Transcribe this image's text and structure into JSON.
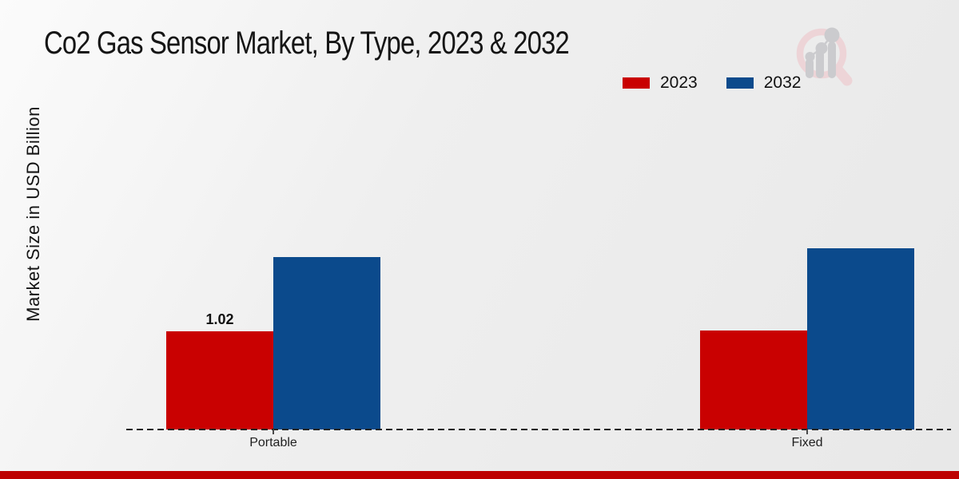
{
  "header": {
    "title": "Co2 Gas Sensor Market, By Type, 2023 & 2032"
  },
  "chart_data": {
    "type": "bar",
    "title": "Co2 Gas Sensor Market, By Type, 2023 & 2032",
    "xlabel": "",
    "ylabel": "Market Size in USD Billion",
    "categories": [
      "Portable",
      "Fixed"
    ],
    "series": [
      {
        "name": "2023",
        "color": "#c90101",
        "values": [
          1.02,
          1.03
        ]
      },
      {
        "name": "2032",
        "color": "#0b4a8c",
        "values": [
          1.79,
          1.88
        ]
      }
    ],
    "bar_labels": [
      {
        "category": "Portable",
        "series": "2023",
        "text": "1.02"
      }
    ],
    "legend_position": "top-right",
    "gridlines": false,
    "y_axis_visible": false,
    "baseline_style": "dashed"
  },
  "footer": {
    "accent_color": "#bd0000"
  },
  "logo": {
    "name": "market-research-magnifier-logo"
  }
}
